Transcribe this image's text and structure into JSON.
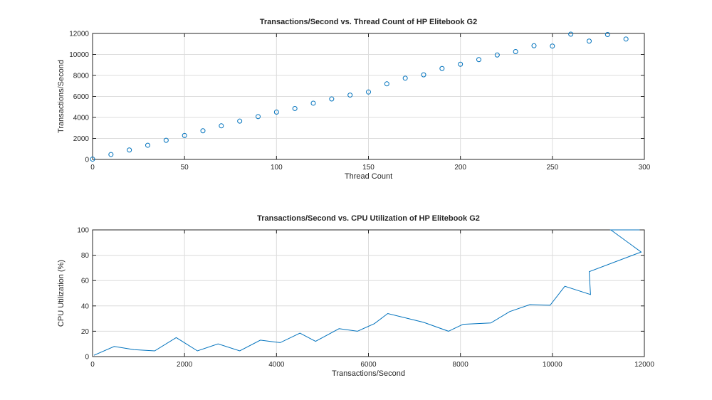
{
  "chart_data": [
    {
      "type": "scatter",
      "title": "Transactions/Second vs. Thread Count of HP Elitebook G2",
      "xlabel": "Thread Count",
      "ylabel": "Transactions/Second",
      "xlim": [
        0,
        300
      ],
      "ylim": [
        0,
        12000
      ],
      "xticks": [
        0,
        50,
        100,
        150,
        200,
        250,
        300
      ],
      "yticks": [
        0,
        2000,
        4000,
        6000,
        8000,
        10000,
        12000
      ],
      "grid": true,
      "color": "#0072bd",
      "x": [
        0,
        10,
        20,
        30,
        40,
        50,
        60,
        70,
        80,
        90,
        100,
        110,
        120,
        130,
        140,
        150,
        160,
        170,
        180,
        190,
        200,
        210,
        220,
        230,
        240,
        250,
        260,
        270,
        280,
        290
      ],
      "y": [
        30,
        470,
        900,
        1350,
        1820,
        2280,
        2730,
        3200,
        3650,
        4080,
        4510,
        4850,
        5360,
        5760,
        6130,
        6420,
        7200,
        7740,
        8060,
        8660,
        9070,
        9510,
        9950,
        10270,
        10830,
        10800,
        11930,
        11270,
        11900,
        11470
      ]
    },
    {
      "type": "line",
      "title": "Transactions/Second vs. CPU Utilization of HP Elitebook G2",
      "xlabel": "Transactions/Second",
      "ylabel": "CPU Utilization (%)",
      "xlim": [
        0,
        12000
      ],
      "ylim": [
        0,
        100
      ],
      "xticks": [
        0,
        2000,
        4000,
        6000,
        8000,
        10000,
        12000
      ],
      "yticks": [
        0,
        20,
        40,
        60,
        80,
        100
      ],
      "grid": true,
      "color": "#0072bd",
      "x": [
        30,
        470,
        900,
        1350,
        1820,
        2280,
        2730,
        3200,
        3650,
        4080,
        4510,
        4850,
        5360,
        5760,
        6130,
        6420,
        7200,
        7740,
        8060,
        8660,
        9070,
        9510,
        9950,
        10270,
        10830,
        10800,
        11930,
        11270,
        11900,
        11470
      ],
      "y": [
        1,
        8,
        5.5,
        4.5,
        15,
        4.5,
        10,
        4.5,
        13,
        11,
        18.5,
        12,
        22,
        20,
        26,
        34,
        27,
        20,
        25.5,
        26.5,
        35.5,
        41,
        40.5,
        55.5,
        49,
        67,
        82.5,
        100,
        100,
        100
      ]
    }
  ]
}
